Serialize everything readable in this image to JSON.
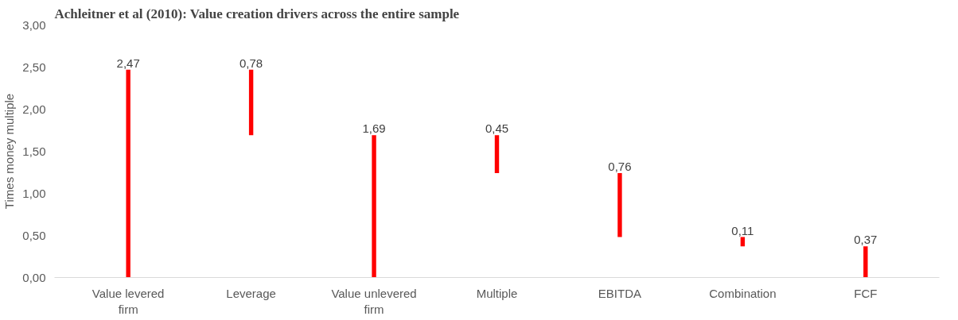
{
  "chart_data": {
    "type": "bar",
    "title": "Achleitner et al (2010): Value creation drivers across the entire sample",
    "ylabel": "Times money multiple",
    "categories": [
      "Value levered firm",
      "Leverage",
      "Value unlevered firm",
      "Multiple",
      "EBITDA",
      "Combination",
      "FCF"
    ],
    "values": [
      2.47,
      0.78,
      1.69,
      0.45,
      0.76,
      0.11,
      0.37
    ],
    "base": [
      0,
      1.69,
      0,
      1.24,
      0.48,
      0.37,
      0
    ],
    "value_labels": [
      "2,47",
      "0,78",
      "1,69",
      "0,45",
      "0,76",
      "0,11",
      "0,37"
    ],
    "color": "#ff0000",
    "ylim": [
      0,
      3
    ],
    "yticks": [
      {
        "value": 0,
        "label": "0,00"
      },
      {
        "value": 0.5,
        "label": "0,50"
      },
      {
        "value": 1,
        "label": "1,00"
      },
      {
        "value": 1.5,
        "label": "1,50"
      },
      {
        "value": 2,
        "label": "2,00"
      },
      {
        "value": 2.5,
        "label": "2,50"
      },
      {
        "value": 3,
        "label": "3,00"
      }
    ],
    "grid": false
  }
}
